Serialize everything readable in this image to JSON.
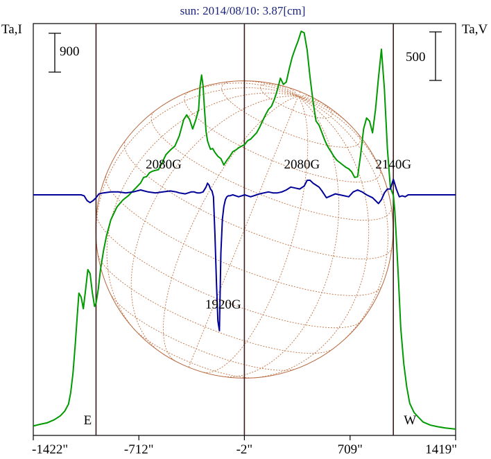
{
  "chart_data": {
    "type": "line",
    "title": "sun: 2014/08/10: 3.87[cm]",
    "left_axis_label": "Ta,I",
    "right_axis_label": "Ta,V",
    "xlabel": "",
    "x_ticks": [
      "-1422\"",
      "-712\"",
      "-2\"",
      "709\"",
      "1419\""
    ],
    "x_tick_values": [
      -1422,
      -712,
      -2,
      709,
      1419
    ],
    "xlim": [
      -1422,
      1419
    ],
    "limb_markers": [
      {
        "label": "E",
        "x": -1000
      },
      {
        "label": "W",
        "x": 1000
      }
    ],
    "center_marker_x": -2,
    "scale_bars": [
      {
        "label": "900",
        "series": "Ta,I"
      },
      {
        "label": "500",
        "series": "Ta,V"
      }
    ],
    "ylim_I": [
      0,
      4950
    ],
    "ylim_V": [
      -1900,
      930
    ],
    "annotations": [
      {
        "text": "2080G",
        "x": -545
      },
      {
        "text": "2080G",
        "x": 385
      },
      {
        "text": "2140G",
        "x": 1000
      },
      {
        "text": "1920G",
        "x": -145
      }
    ],
    "grid": false,
    "series": [
      {
        "name": "",
        "axis": "Ta,I",
        "color": "#009900",
        "x": [
          -1422,
          -1380,
          -1330,
          -1280,
          -1240,
          -1210,
          -1185,
          -1170,
          -1155,
          -1140,
          -1125,
          -1115,
          -1100,
          -1085,
          -1070,
          -1055,
          -1040,
          -1025,
          -1010,
          -1000,
          -985,
          -970,
          -950,
          -930,
          -900,
          -860,
          -820,
          -780,
          -740,
          -700,
          -680,
          -660,
          -640,
          -620,
          -600,
          -580,
          -560,
          -530,
          -500,
          -470,
          -440,
          -410,
          -390,
          -370,
          -350,
          -330,
          -310,
          -300,
          -290,
          -280,
          -270,
          -260,
          -250,
          -240,
          -230,
          -215,
          -200,
          -180,
          -160,
          -140,
          -120,
          -100,
          -80,
          -60,
          -40,
          -20,
          0,
          20,
          40,
          60,
          80,
          100,
          120,
          140,
          160,
          180,
          200,
          220,
          240,
          260,
          280,
          300,
          320,
          340,
          360,
          380,
          400,
          420,
          440,
          460,
          480,
          500,
          520,
          540,
          560,
          580,
          600,
          620,
          640,
          660,
          680,
          700,
          720,
          740,
          760,
          780,
          800,
          820,
          840,
          860,
          880,
          900,
          920,
          940,
          960,
          980,
          1000,
          1010,
          1020,
          1035,
          1050,
          1070,
          1090,
          1110,
          1140,
          1170,
          1200,
          1250,
          1300,
          1350,
          1419
        ],
        "values": [
          50,
          70,
          90,
          130,
          180,
          240,
          330,
          480,
          720,
          1080,
          1500,
          1750,
          1700,
          1550,
          1800,
          2050,
          2000,
          1760,
          1580,
          1620,
          1800,
          2050,
          2290,
          2480,
          2690,
          2850,
          2940,
          3000,
          3080,
          3160,
          3230,
          3240,
          3290,
          3310,
          3320,
          3330,
          3400,
          3520,
          3580,
          3630,
          3760,
          3970,
          4030,
          3970,
          3850,
          3960,
          4100,
          4400,
          4540,
          4400,
          4100,
          3820,
          3700,
          3640,
          3590,
          3600,
          3550,
          3500,
          3470,
          3390,
          3450,
          3500,
          3560,
          3580,
          3610,
          3630,
          3650,
          3700,
          3720,
          3760,
          3800,
          3870,
          3950,
          4030,
          4100,
          4140,
          4230,
          4350,
          4500,
          4420,
          4450,
          4620,
          4770,
          4880,
          4980,
          5100,
          5080,
          4860,
          4510,
          4200,
          3950,
          3900,
          3800,
          3700,
          3620,
          3560,
          3500,
          3450,
          3420,
          3390,
          3360,
          3340,
          3300,
          3230,
          3240,
          3520,
          3850,
          3990,
          3950,
          3800,
          4100,
          4500,
          4870,
          4360,
          3600,
          3100,
          3000,
          2800,
          2450,
          1900,
          1300,
          850,
          550,
          340,
          220,
          160,
          100,
          60,
          40,
          25,
          10
        ]
      },
      {
        "name": "",
        "axis": "Ta,V",
        "color": "#000099",
        "x": [
          -1422,
          -1150,
          -1100,
          -1080,
          -1060,
          -1040,
          -1020,
          -1000,
          -980,
          -950,
          -900,
          -850,
          -800,
          -750,
          -700,
          -650,
          -600,
          -550,
          -500,
          -460,
          -440,
          -420,
          -400,
          -380,
          -360,
          -340,
          -320,
          -300,
          -280,
          -260,
          -250,
          -240,
          -230,
          -220,
          -210,
          -200,
          -190,
          -180,
          -170,
          -160,
          -150,
          -140,
          -130,
          -120,
          -110,
          -100,
          -90,
          -80,
          -60,
          -40,
          -20,
          0,
          20,
          40,
          60,
          80,
          100,
          130,
          160,
          190,
          220,
          250,
          280,
          310,
          340,
          370,
          400,
          420,
          440,
          460,
          480,
          500,
          520,
          550,
          580,
          610,
          640,
          670,
          700,
          730,
          760,
          790,
          820,
          860,
          880,
          900,
          920,
          940,
          960,
          980,
          1000,
          1020,
          1040,
          1060,
          1080,
          1100,
          1150,
          1419
        ],
        "values": [
          0,
          0,
          0,
          -10,
          -60,
          -80,
          -60,
          -30,
          10,
          20,
          30,
          30,
          20,
          30,
          50,
          30,
          20,
          30,
          40,
          30,
          20,
          15,
          10,
          20,
          30,
          30,
          20,
          20,
          30,
          80,
          120,
          100,
          60,
          40,
          -20,
          -400,
          -900,
          -1300,
          -1400,
          -600,
          -250,
          -120,
          -50,
          -20,
          -10,
          -10,
          -5,
          0,
          -10,
          -20,
          -10,
          0,
          -10,
          -20,
          -10,
          0,
          10,
          20,
          30,
          20,
          20,
          30,
          50,
          80,
          70,
          60,
          90,
          150,
          150,
          120,
          100,
          80,
          40,
          -30,
          -10,
          10,
          0,
          -10,
          -20,
          30,
          50,
          30,
          0,
          -30,
          -60,
          -90,
          -50,
          20,
          60,
          60,
          160,
          60,
          -20,
          -10,
          -20,
          0,
          0,
          0
        ]
      }
    ]
  }
}
